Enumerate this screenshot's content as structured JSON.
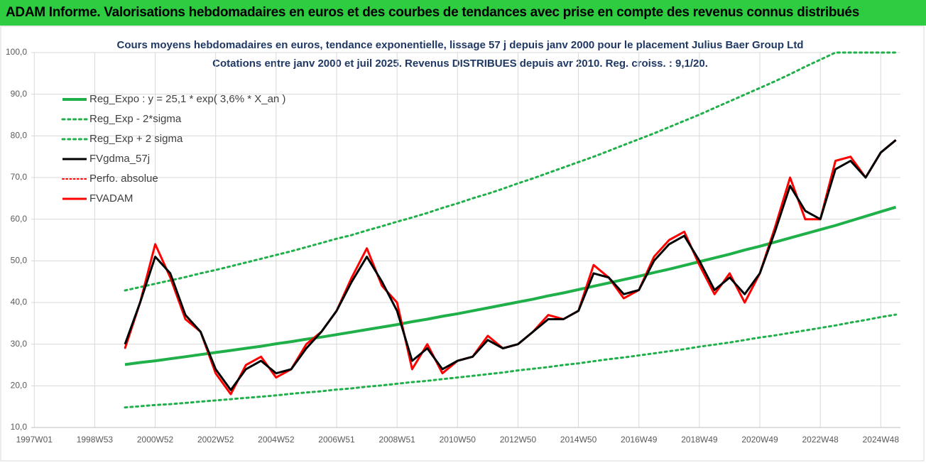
{
  "chart_data": {
    "type": "line",
    "title": "ADAM Informe. Valorisations hebdomadaires en euros et des courbes de tendances avec prise en compte des revenus connus distribués",
    "subtitle": [
      "Cours moyens hebdomadaires en euros, tendance exponentielle, lissage 57 j depuis janv 2000 pour le placement Julius Baer Group Ltd",
      "Cotations entre janv 2000 et juil 2025. Revenus DISTRIBUES depuis avr 2010.  Reg. croiss. : 9,1/20."
    ],
    "x": [
      2000.0,
      2000.5,
      2001.0,
      2001.5,
      2002.0,
      2002.5,
      2003.0,
      2003.5,
      2004.0,
      2004.5,
      2005.0,
      2005.5,
      2006.0,
      2006.5,
      2007.0,
      2007.5,
      2008.0,
      2008.5,
      2009.0,
      2009.5,
      2010.0,
      2010.5,
      2011.0,
      2011.5,
      2012.0,
      2012.5,
      2013.0,
      2013.5,
      2014.0,
      2014.5,
      2015.0,
      2015.5,
      2016.0,
      2016.5,
      2017.0,
      2017.5,
      2018.0,
      2018.5,
      2019.0,
      2019.5,
      2020.0,
      2020.5,
      2021.0,
      2021.5,
      2022.0,
      2022.5,
      2023.0,
      2023.5,
      2024.0,
      2024.5,
      2025.0,
      2025.5
    ],
    "series": [
      {
        "name": "Reg_Expo : y = 25,1 * exp( 3,6% *  X_an )",
        "color": "#1fb04a",
        "dash": "solid",
        "width": 4,
        "values": [
          25.1,
          25.6,
          26.0,
          26.5,
          27.0,
          27.5,
          28.0,
          28.5,
          29.0,
          29.5,
          30.1,
          30.6,
          31.2,
          31.7,
          32.3,
          32.9,
          33.5,
          34.1,
          34.7,
          35.4,
          36.0,
          36.7,
          37.3,
          38.0,
          38.7,
          39.4,
          40.1,
          40.8,
          41.6,
          42.3,
          43.1,
          43.9,
          44.7,
          45.5,
          46.3,
          47.2,
          48.0,
          48.9,
          49.8,
          50.7,
          51.6,
          52.6,
          53.5,
          54.5,
          55.5,
          56.5,
          57.5,
          58.5,
          59.6,
          60.7,
          61.8,
          62.9
        ]
      },
      {
        "name": "Reg_Exp - 2*sigma",
        "color": "#1fb04a",
        "dash": "dotted",
        "width": 3,
        "values": [
          14.8,
          15.1,
          15.4,
          15.6,
          15.9,
          16.2,
          16.5,
          16.8,
          17.1,
          17.4,
          17.7,
          18.1,
          18.4,
          18.7,
          19.1,
          19.4,
          19.8,
          20.1,
          20.5,
          20.9,
          21.2,
          21.6,
          22.0,
          22.4,
          22.8,
          23.2,
          23.7,
          24.1,
          24.5,
          25.0,
          25.4,
          25.9,
          26.4,
          26.8,
          27.3,
          27.8,
          28.3,
          28.8,
          29.4,
          29.9,
          30.4,
          31.0,
          31.6,
          32.1,
          32.7,
          33.3,
          33.9,
          34.5,
          35.2,
          35.8,
          36.5,
          37.1
        ]
      },
      {
        "name": "Reg_Exp + 2 sigma",
        "color": "#1fb04a",
        "dash": "dotted",
        "width": 3,
        "values": [
          42.9,
          43.7,
          44.5,
          45.3,
          46.1,
          47.0,
          47.8,
          48.7,
          49.6,
          50.5,
          51.4,
          52.3,
          53.3,
          54.3,
          55.3,
          56.2,
          57.3,
          58.3,
          59.4,
          60.4,
          61.5,
          62.7,
          63.8,
          65.0,
          66.1,
          67.3,
          68.6,
          69.8,
          71.1,
          72.4,
          73.7,
          75.0,
          76.4,
          77.8,
          79.2,
          80.6,
          82.1,
          83.6,
          85.1,
          86.7,
          88.3,
          89.9,
          91.5,
          93.1,
          94.8,
          96.6,
          98.3,
          100.0,
          100.0,
          100.0,
          100.0,
          100.0
        ]
      },
      {
        "name": "FVgdma_57j",
        "color": "#000000",
        "dash": "solid",
        "width": 3,
        "values": [
          30,
          40,
          51,
          47,
          37,
          33,
          24,
          19,
          24,
          26,
          23,
          24,
          29,
          33,
          38,
          45,
          51,
          45,
          38,
          26,
          29,
          24,
          26,
          27,
          31,
          29,
          30,
          33,
          36,
          36,
          38,
          47,
          46,
          42,
          43,
          50,
          54,
          56,
          50,
          43,
          46,
          42,
          47,
          57,
          68,
          62,
          60,
          72,
          74,
          70,
          76,
          79
        ]
      },
      {
        "name": "Perfo. absolue",
        "color": "#ff0000",
        "dash": "dotted",
        "width": 2,
        "values": [
          29,
          40,
          54,
          46,
          36,
          33,
          23,
          18,
          25,
          27,
          22,
          24,
          30,
          33,
          38,
          46,
          53,
          44,
          40,
          24,
          30,
          23,
          26,
          27,
          32,
          29,
          30,
          33,
          37,
          36,
          38,
          49,
          46,
          41,
          43,
          51,
          55,
          57,
          49,
          42,
          47,
          40,
          47,
          58,
          70,
          60,
          60,
          74,
          75,
          70,
          76,
          79
        ]
      },
      {
        "name": "FVADAM",
        "color": "#ff0000",
        "dash": "solid",
        "width": 3,
        "values": [
          29,
          40,
          54,
          46,
          36,
          33,
          23,
          18,
          25,
          27,
          22,
          24,
          30,
          33,
          38,
          46,
          53,
          44,
          40,
          24,
          30,
          23,
          26,
          27,
          32,
          29,
          30,
          33,
          37,
          36,
          38,
          49,
          46,
          41,
          43,
          51,
          55,
          57,
          49,
          42,
          47,
          40,
          47,
          58,
          70,
          60,
          60,
          74,
          75,
          70,
          76,
          79
        ]
      }
    ],
    "xlim": [
      1996.9,
      2025.65
    ],
    "xticks": [
      {
        "value": 1997,
        "label": "1997W01"
      },
      {
        "value": 1999,
        "label": "1998W53"
      },
      {
        "value": 2001,
        "label": "2000W52"
      },
      {
        "value": 2003,
        "label": "2002W52"
      },
      {
        "value": 2005,
        "label": "2004W52"
      },
      {
        "value": 2007,
        "label": "2006W51"
      },
      {
        "value": 2009,
        "label": "2008W51"
      },
      {
        "value": 2011,
        "label": "2010W50"
      },
      {
        "value": 2013,
        "label": "2012W50"
      },
      {
        "value": 2015,
        "label": "2014W50"
      },
      {
        "value": 2017,
        "label": "2016W49"
      },
      {
        "value": 2019,
        "label": "2018W49"
      },
      {
        "value": 2021,
        "label": "2020W49"
      },
      {
        "value": 2023,
        "label": "2022W48"
      },
      {
        "value": 2025,
        "label": "2024W48"
      }
    ],
    "ylim": [
      10,
      100
    ],
    "yticks": [
      {
        "value": 10,
        "label": "10,0"
      },
      {
        "value": 20,
        "label": "20,0"
      },
      {
        "value": 30,
        "label": "30,0"
      },
      {
        "value": 40,
        "label": "40,0"
      },
      {
        "value": 50,
        "label": "50,0"
      },
      {
        "value": 60,
        "label": "60,0"
      },
      {
        "value": 70,
        "label": "70,0"
      },
      {
        "value": 80,
        "label": "80,0"
      },
      {
        "value": 90,
        "label": "90,0"
      },
      {
        "value": 100,
        "label": "100,0"
      }
    ],
    "grid": true,
    "legend": "upper left"
  }
}
